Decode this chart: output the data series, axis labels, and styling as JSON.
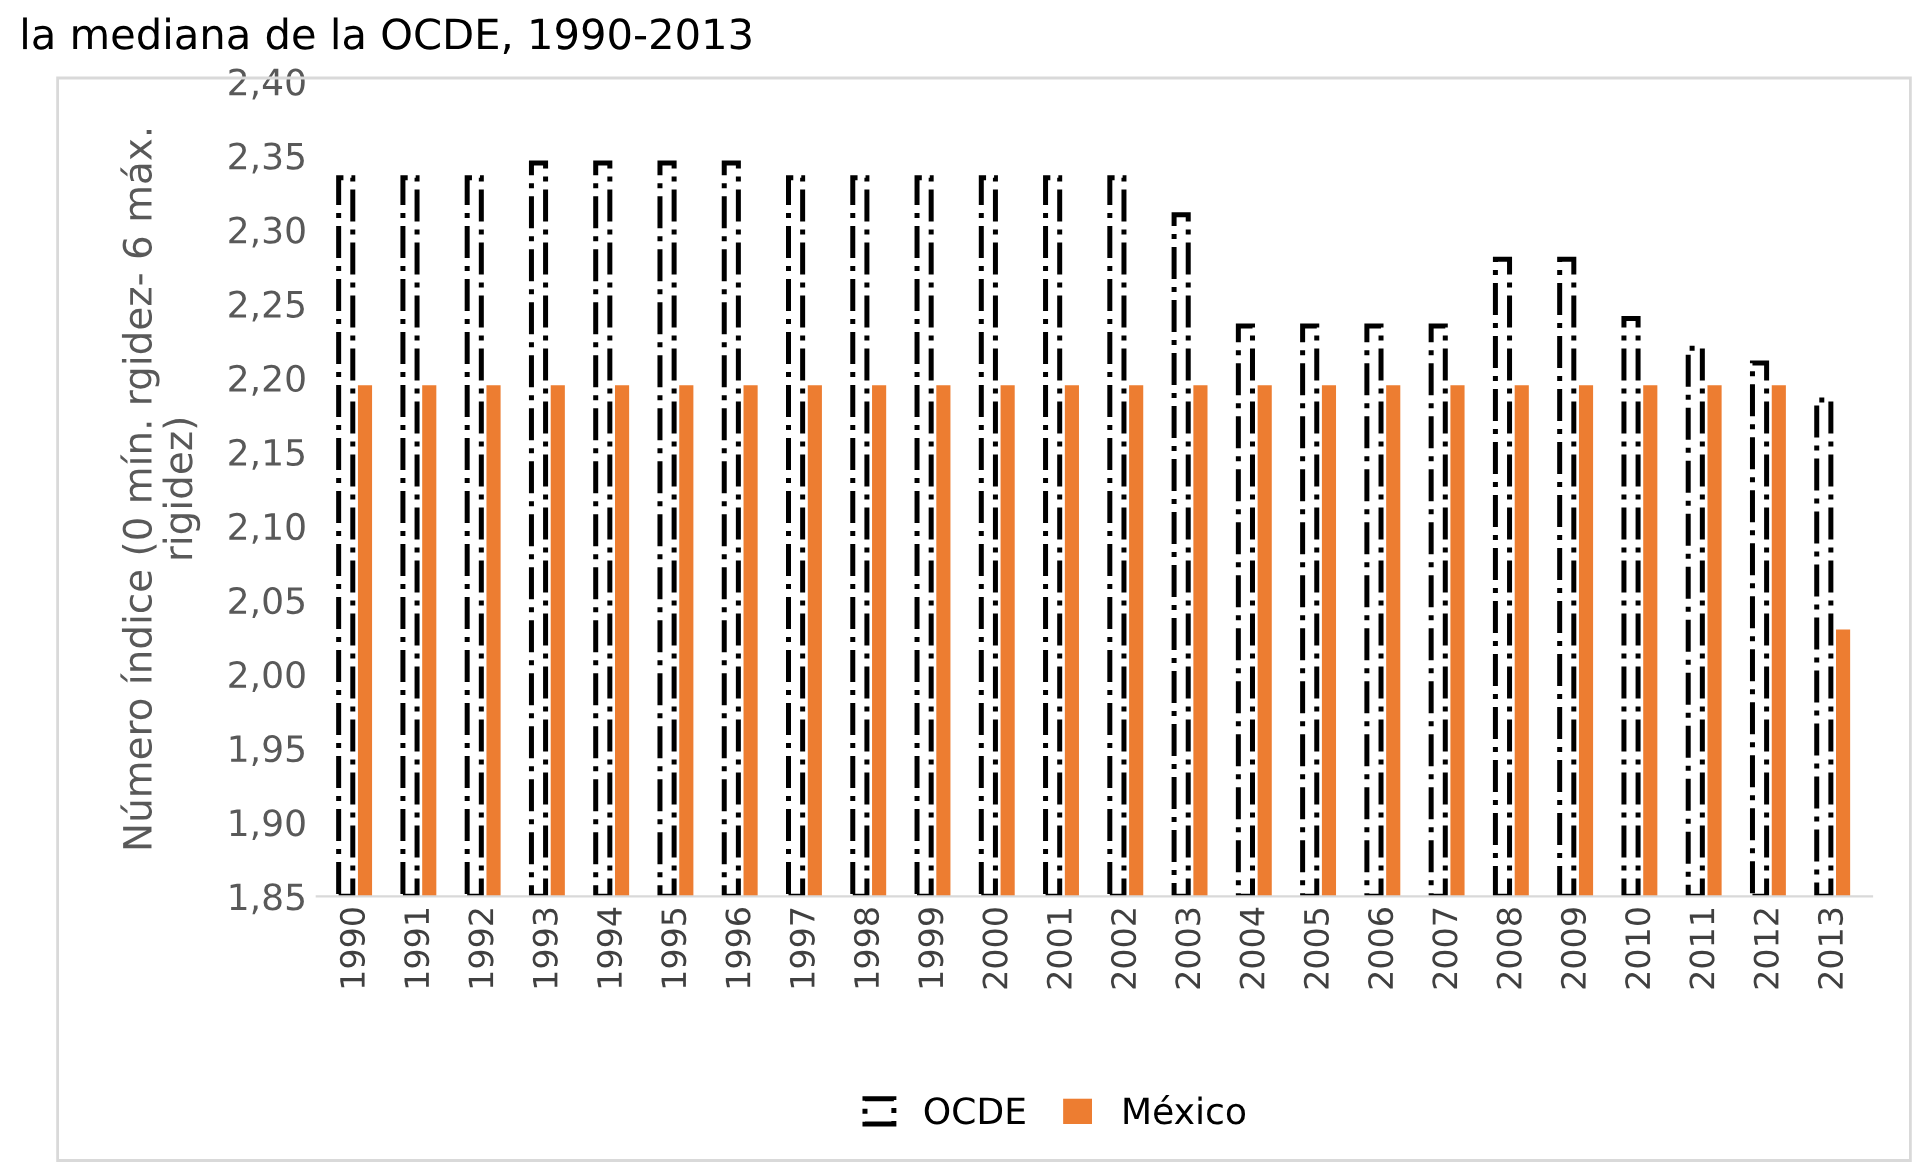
{
  "chart_data": {
    "type": "bar",
    "title": "la mediana de la OCDE, 1990-2013",
    "ylabel": "Número índice (0 mín. rgidez- 6 máx. rigidez)",
    "categories": [
      "1990",
      "1991",
      "1992",
      "1993",
      "1994",
      "1995",
      "1996",
      "1997",
      "1998",
      "1999",
      "2000",
      "2001",
      "2002",
      "2003",
      "2004",
      "2005",
      "2006",
      "2007",
      "2008",
      "2009",
      "2010",
      "2011",
      "2012",
      "2013"
    ],
    "series": [
      {
        "name": "OCDE",
        "color": "#000000",
        "values": [
          2.335,
          2.335,
          2.335,
          2.345,
          2.345,
          2.345,
          2.345,
          2.335,
          2.335,
          2.335,
          2.335,
          2.335,
          2.335,
          2.31,
          2.235,
          2.235,
          2.235,
          2.235,
          2.28,
          2.28,
          2.24,
          2.22,
          2.21,
          2.185
        ]
      },
      {
        "name": "México",
        "color": "#ed7d31",
        "values": [
          2.195,
          2.195,
          2.195,
          2.195,
          2.195,
          2.195,
          2.195,
          2.195,
          2.195,
          2.195,
          2.195,
          2.195,
          2.195,
          2.195,
          2.195,
          2.195,
          2.195,
          2.195,
          2.195,
          2.195,
          2.195,
          2.195,
          2.195,
          2.03
        ]
      }
    ],
    "ylim": [
      1.85,
      2.4
    ],
    "yticks": [
      {
        "value": 1.85,
        "label": "1,85"
      },
      {
        "value": 1.9,
        "label": "1,90"
      },
      {
        "value": 1.95,
        "label": "1,95"
      },
      {
        "value": 2.0,
        "label": "2,00"
      },
      {
        "value": 2.05,
        "label": "2,05"
      },
      {
        "value": 2.1,
        "label": "2,10"
      },
      {
        "value": 2.15,
        "label": "2,15"
      },
      {
        "value": 2.2,
        "label": "2,20"
      },
      {
        "value": 2.25,
        "label": "2,25"
      },
      {
        "value": 2.3,
        "label": "2,30"
      },
      {
        "value": 2.35,
        "label": "2,35"
      },
      {
        "value": 2.4,
        "label": "2,40"
      }
    ],
    "grid": false,
    "legend": "bottom"
  }
}
